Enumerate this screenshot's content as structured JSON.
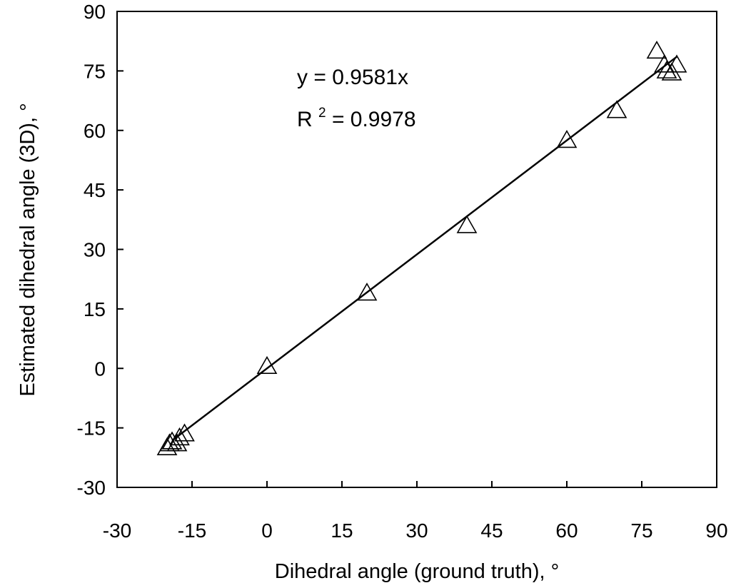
{
  "chart_data": {
    "type": "scatter",
    "title": "",
    "xlabel": "Dihedral angle (ground truth), °",
    "ylabel": "Estimated dihedral angle (3D), °",
    "xlim": [
      -30,
      90
    ],
    "ylim": [
      -30,
      90
    ],
    "xticks": [
      -30,
      -15,
      0,
      15,
      30,
      45,
      60,
      75,
      90
    ],
    "yticks": [
      -30,
      -15,
      0,
      15,
      30,
      45,
      60,
      75,
      90
    ],
    "grid": false,
    "marker": "open-triangle",
    "series": [
      {
        "points": [
          [
            -20,
            -20
          ],
          [
            -19.5,
            -19
          ],
          [
            -19,
            -18.5
          ],
          [
            -18,
            -19
          ],
          [
            -17.5,
            -17.5
          ],
          [
            -16.5,
            -16.5
          ],
          [
            0,
            0.5
          ],
          [
            20,
            19
          ],
          [
            40,
            36
          ],
          [
            60,
            57.5
          ],
          [
            70,
            65
          ],
          [
            78,
            80
          ],
          [
            79.5,
            76.5
          ],
          [
            80,
            75
          ],
          [
            81,
            74.5
          ],
          [
            82,
            76.5
          ]
        ]
      }
    ],
    "trendline": {
      "slope": 0.9581,
      "x_range": [
        -19,
        82
      ]
    },
    "annotations": {
      "equation": "y = 0.9581x",
      "r2_prefix": "R",
      "r2_sup": "2",
      "r2_value": " = 0.9978"
    }
  }
}
